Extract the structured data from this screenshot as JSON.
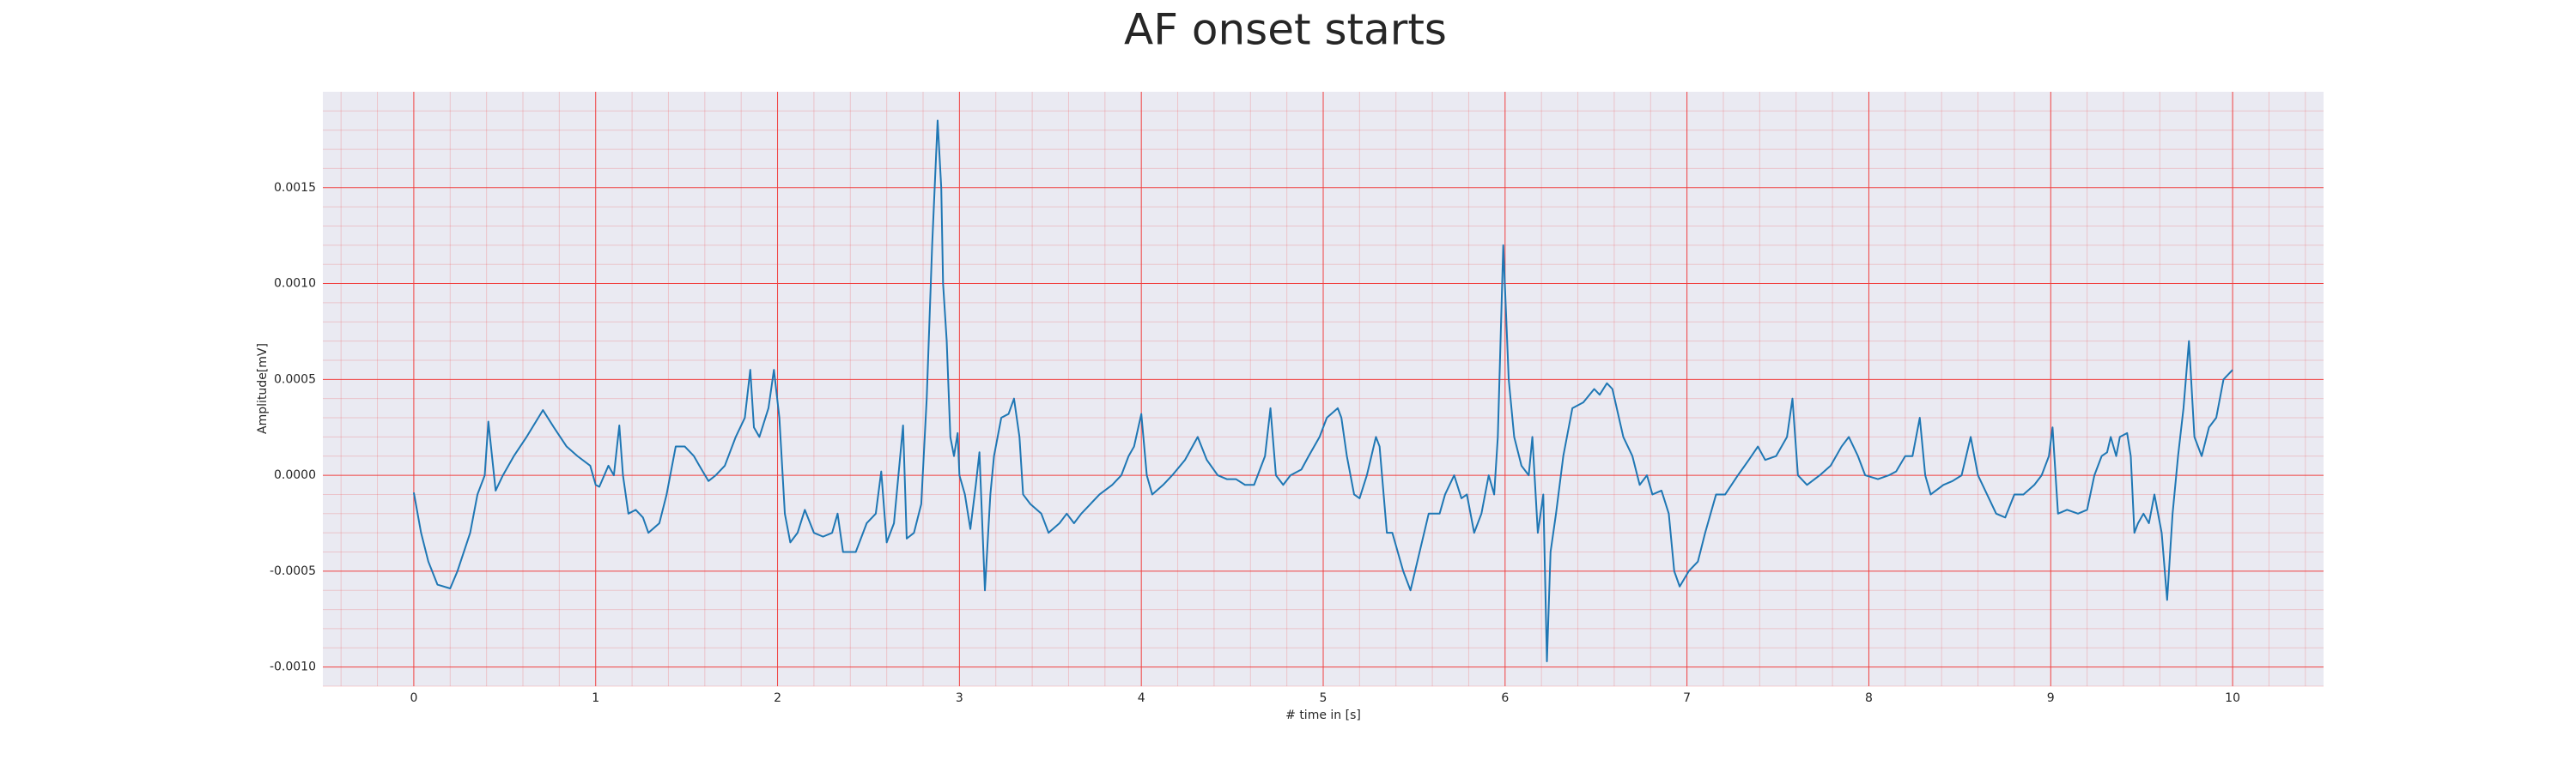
{
  "chart_data": {
    "type": "line",
    "title": "AF onset starts",
    "xlabel": "# time in [s]",
    "ylabel": "Amplitude[mV]",
    "color": "#1f77b4",
    "background": "#eaeaf2",
    "grid": true,
    "grid_color": "#f04040",
    "minor_grid": true,
    "xlim": [
      -0.5,
      10.5
    ],
    "ylim": [
      -0.0011,
      0.002
    ],
    "xticks": [
      0,
      1,
      2,
      3,
      4,
      5,
      6,
      7,
      8,
      9,
      10
    ],
    "yticks": [
      {
        "value": -0.001,
        "label": "-0.0010"
      },
      {
        "value": -0.0005,
        "label": "-0.0005"
      },
      {
        "value": 0,
        "label": "0.0000"
      },
      {
        "value": 0.0005,
        "label": "0.0005"
      },
      {
        "value": 0.001,
        "label": "0.0010"
      },
      {
        "value": 0.0015,
        "label": "0.0015"
      }
    ],
    "x": [
      0,
      0.04,
      0.08,
      0.13,
      0.2,
      0.24,
      0.31,
      0.35,
      0.39,
      0.41,
      0.45,
      0.49,
      0.55,
      0.62,
      0.71,
      0.77,
      0.84,
      0.9,
      0.97,
      1.0,
      1.02,
      1.07,
      1.1,
      1.13,
      1.15,
      1.18,
      1.22,
      1.26,
      1.29,
      1.35,
      1.39,
      1.44,
      1.49,
      1.54,
      1.57,
      1.62,
      1.66,
      1.71,
      1.77,
      1.82,
      1.85,
      1.87,
      1.9,
      1.95,
      1.98,
      2.01,
      2.04,
      2.07,
      2.11,
      2.15,
      2.2,
      2.25,
      2.3,
      2.33,
      2.36,
      2.43,
      2.49,
      2.54,
      2.57,
      2.6,
      2.64,
      2.69,
      2.71,
      2.75,
      2.79,
      2.82,
      2.85,
      2.88,
      2.9,
      2.91,
      2.93,
      2.95,
      2.97,
      2.99,
      3.0,
      3.03,
      3.06,
      3.09,
      3.11,
      3.14,
      3.17,
      3.19,
      3.23,
      3.27,
      3.3,
      3.33,
      3.35,
      3.39,
      3.45,
      3.49,
      3.55,
      3.59,
      3.63,
      3.67,
      3.72,
      3.77,
      3.84,
      3.89,
      3.93,
      3.96,
      4.0,
      4.03,
      4.06,
      4.12,
      4.17,
      4.24,
      4.31,
      4.36,
      4.42,
      4.47,
      4.52,
      4.57,
      4.62,
      4.68,
      4.71,
      4.74,
      4.78,
      4.82,
      4.88,
      4.92,
      4.98,
      5.02,
      5.08,
      5.1,
      5.13,
      5.17,
      5.2,
      5.24,
      5.29,
      5.31,
      5.35,
      5.38,
      5.44,
      5.48,
      5.53,
      5.58,
      5.64,
      5.67,
      5.72,
      5.76,
      5.79,
      5.83,
      5.87,
      5.91,
      5.94,
      5.96,
      5.99,
      6.02,
      6.05,
      6.09,
      6.13,
      6.15,
      6.18,
      6.21,
      6.23,
      6.25,
      6.28,
      6.32,
      6.37,
      6.43,
      6.49,
      6.52,
      6.56,
      6.59,
      6.65,
      6.7,
      6.74,
      6.78,
      6.81,
      6.86,
      6.9,
      6.93,
      6.96,
      7.01,
      7.06,
      7.1,
      7.16,
      7.21,
      7.28,
      7.34,
      7.39,
      7.43,
      7.49,
      7.55,
      7.58,
      7.61,
      7.66,
      7.73,
      7.79,
      7.85,
      7.89,
      7.94,
      7.98,
      8.05,
      8.11,
      8.15,
      8.2,
      8.24,
      8.28,
      8.31,
      8.34,
      8.41,
      8.46,
      8.51,
      8.56,
      8.6,
      8.65,
      8.7,
      8.75,
      8.8,
      8.85,
      8.91,
      8.95,
      8.99,
      9.01,
      9.04,
      9.09,
      9.15,
      9.2,
      9.24,
      9.28,
      9.31,
      9.33,
      9.36,
      9.38,
      9.42,
      9.44,
      9.46,
      9.48,
      9.51,
      9.54,
      9.57,
      9.61,
      9.64,
      9.67,
      9.7,
      9.73,
      9.76,
      9.79,
      9.83,
      9.87,
      9.91,
      9.95,
      10.0
    ],
    "values": [
      -9e-05,
      -0.0003,
      -0.00045,
      -0.00057,
      -0.00059,
      -0.0005,
      -0.0003,
      -0.0001,
      0.0,
      0.00028,
      -8e-05,
      0.0,
      0.0001,
      0.0002,
      0.00034,
      0.00025,
      0.00015,
      0.0001,
      5e-05,
      -5e-05,
      -6e-05,
      5e-05,
      0.0,
      0.00026,
      0.0,
      -0.0002,
      -0.00018,
      -0.00022,
      -0.0003,
      -0.00025,
      -0.0001,
      0.00015,
      0.00015,
      0.0001,
      5e-05,
      -3e-05,
      0.0,
      5e-05,
      0.0002,
      0.0003,
      0.00055,
      0.00025,
      0.0002,
      0.00035,
      0.00055,
      0.0003,
      -0.0002,
      -0.00035,
      -0.0003,
      -0.00018,
      -0.0003,
      -0.00032,
      -0.0003,
      -0.0002,
      -0.0004,
      -0.0004,
      -0.00025,
      -0.0002,
      2e-05,
      -0.00035,
      -0.00025,
      0.00026,
      -0.00033,
      -0.0003,
      -0.00015,
      0.0004,
      0.0012,
      0.00185,
      0.0015,
      0.001,
      0.0007,
      0.0002,
      0.0001,
      0.00022,
      0.0,
      -0.0001,
      -0.00028,
      -5e-05,
      0.00012,
      -0.0006,
      -0.0001,
      0.0001,
      0.0003,
      0.00032,
      0.0004,
      0.0002,
      -0.0001,
      -0.00015,
      -0.0002,
      -0.0003,
      -0.00025,
      -0.0002,
      -0.00025,
      -0.0002,
      -0.00015,
      -0.0001,
      -5e-05,
      0.0,
      0.0001,
      0.00015,
      0.00032,
      0.0,
      -0.0001,
      -5e-05,
      0.0,
      8e-05,
      0.0002,
      8e-05,
      0.0,
      -2e-05,
      -2e-05,
      -5e-05,
      -5e-05,
      0.0001,
      0.00035,
      0.0,
      -5e-05,
      0.0,
      3e-05,
      0.0001,
      0.0002,
      0.0003,
      0.00035,
      0.0003,
      0.0001,
      -0.0001,
      -0.00012,
      0.0,
      0.0002,
      0.00015,
      -0.0003,
      -0.0003,
      -0.0005,
      -0.0006,
      -0.0004,
      -0.0002,
      -0.0002,
      -0.0001,
      0.0,
      -0.00012,
      -0.0001,
      -0.0003,
      -0.0002,
      0.0,
      -0.0001,
      0.0002,
      0.0012,
      0.0005,
      0.0002,
      5e-05,
      0.0,
      0.0002,
      -0.0003,
      -0.0001,
      -0.00097,
      -0.0004,
      -0.0002,
      0.0001,
      0.00035,
      0.00038,
      0.00045,
      0.00042,
      0.00048,
      0.00045,
      0.0002,
      0.0001,
      -5e-05,
      0.0,
      -0.0001,
      -8e-05,
      -0.0002,
      -0.0005,
      -0.00058,
      -0.0005,
      -0.00045,
      -0.0003,
      -0.0001,
      -0.0001,
      0.0,
      8e-05,
      0.00015,
      8e-05,
      0.0001,
      0.0002,
      0.0004,
      0.0,
      -5e-05,
      0.0,
      5e-05,
      0.00015,
      0.0002,
      0.0001,
      0.0,
      -2e-05,
      0.0,
      2e-05,
      0.0001,
      0.0001,
      0.0003,
      0.0,
      -0.0001,
      -5e-05,
      -3e-05,
      0.0,
      0.0002,
      0.0,
      -0.0001,
      -0.0002,
      -0.00022,
      -0.0001,
      -0.0001,
      -5e-05,
      0.0,
      0.0001,
      0.00025,
      -0.0002,
      -0.00018,
      -0.0002,
      -0.00018,
      0.0,
      0.0001,
      0.00012,
      0.0002,
      0.0001,
      0.0002,
      0.00022,
      0.0001,
      -0.0003,
      -0.00025,
      -0.0002,
      -0.00025,
      -0.0001,
      -0.0003,
      -0.00065,
      -0.0002,
      0.0001,
      0.00035,
      0.0007,
      0.0002,
      0.0001,
      0.00025,
      0.0003,
      0.0005,
      0.00055
    ]
  }
}
